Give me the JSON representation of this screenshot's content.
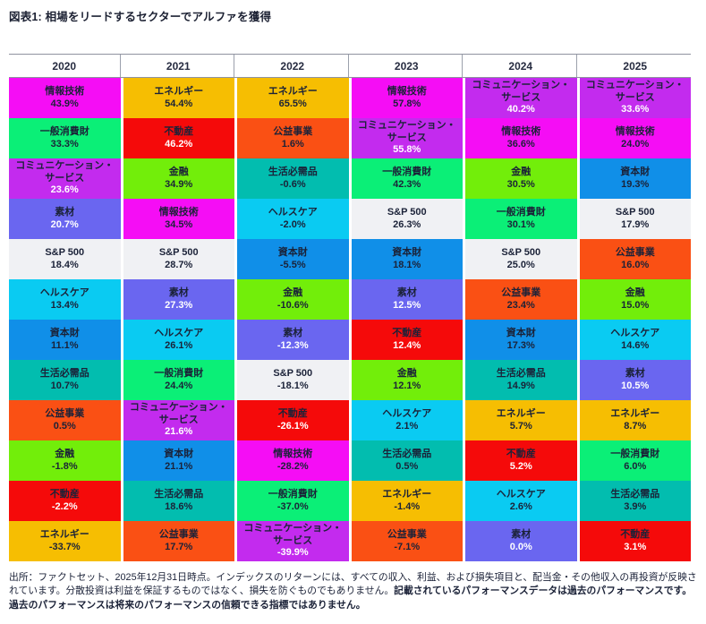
{
  "title": "図表1: 相場をリードするセクターでアルファを獲得",
  "chart_data": {
    "type": "table",
    "subtype": "periodic-table-of-sector-returns",
    "title": "図表1: 相場をリードするセクターでアルファを獲得",
    "years": [
      "2020",
      "2021",
      "2022",
      "2023",
      "2024",
      "2025"
    ],
    "unit": "%",
    "sector_colors": {
      "情報技術": "#f50df5",
      "コミュニケーション・サービス": "#c32bee",
      "一般消費財": "#0bef77",
      "素材": "#6a66f0",
      "S&P 500": "#f0f1f4",
      "ヘルスケア": "#0acbf2",
      "資本財": "#108fe8",
      "生活必需品": "#02bdaf",
      "公益事業": "#fa5014",
      "金融": "#72ee0a",
      "不動産": "#f50a0a",
      "エネルギー": "#f6be02"
    },
    "white_pct_sectors": [
      "コミュニケーション・サービス",
      "素材",
      "不動産"
    ],
    "columns": [
      {
        "year": "2020",
        "cells": [
          [
            "情報技術",
            43.9
          ],
          [
            "一般消費財",
            33.3
          ],
          [
            "コミュニケーション・サービス",
            23.6
          ],
          [
            "素材",
            20.7
          ],
          [
            "S&P 500",
            18.4
          ],
          [
            "ヘルスケア",
            13.4
          ],
          [
            "資本財",
            11.1
          ],
          [
            "生活必需品",
            10.7
          ],
          [
            "公益事業",
            0.5
          ],
          [
            "金融",
            -1.8
          ],
          [
            "不動産",
            -2.2
          ],
          [
            "エネルギー",
            -33.7
          ]
        ]
      },
      {
        "year": "2021",
        "cells": [
          [
            "エネルギー",
            54.4
          ],
          [
            "不動産",
            46.2
          ],
          [
            "金融",
            34.9
          ],
          [
            "情報技術",
            34.5
          ],
          [
            "S&P 500",
            28.7
          ],
          [
            "素材",
            27.3
          ],
          [
            "ヘルスケア",
            26.1
          ],
          [
            "一般消費財",
            24.4
          ],
          [
            "コミュニケーション・サービス",
            21.6
          ],
          [
            "資本財",
            21.1
          ],
          [
            "生活必需品",
            18.6
          ],
          [
            "公益事業",
            17.7
          ]
        ]
      },
      {
        "year": "2022",
        "cells": [
          [
            "エネルギー",
            65.5
          ],
          [
            "公益事業",
            1.6
          ],
          [
            "生活必需品",
            -0.6
          ],
          [
            "ヘルスケア",
            -2.0
          ],
          [
            "資本財",
            -5.5
          ],
          [
            "金融",
            -10.6
          ],
          [
            "素材",
            -12.3
          ],
          [
            "S&P 500",
            -18.1
          ],
          [
            "不動産",
            -26.1
          ],
          [
            "情報技術",
            -28.2
          ],
          [
            "一般消費財",
            -37.0
          ],
          [
            "コミュニケーション・サービス",
            -39.9
          ]
        ]
      },
      {
        "year": "2023",
        "cells": [
          [
            "情報技術",
            57.8
          ],
          [
            "コミュニケーション・サービス",
            55.8
          ],
          [
            "一般消費財",
            42.3
          ],
          [
            "S&P 500",
            26.3
          ],
          [
            "資本財",
            18.1
          ],
          [
            "素材",
            12.5
          ],
          [
            "不動産",
            12.4
          ],
          [
            "金融",
            12.1
          ],
          [
            "ヘルスケア",
            2.1
          ],
          [
            "生活必需品",
            0.5
          ],
          [
            "エネルギー",
            -1.4
          ],
          [
            "公益事業",
            -7.1
          ]
        ]
      },
      {
        "year": "2024",
        "cells": [
          [
            "コミュニケーション・サービス",
            40.2
          ],
          [
            "情報技術",
            36.6
          ],
          [
            "金融",
            30.5
          ],
          [
            "一般消費財",
            30.1
          ],
          [
            "S&P 500",
            25.0
          ],
          [
            "公益事業",
            23.4
          ],
          [
            "資本財",
            17.3
          ],
          [
            "生活必需品",
            14.9
          ],
          [
            "エネルギー",
            5.7
          ],
          [
            "不動産",
            5.2
          ],
          [
            "ヘルスケア",
            2.6
          ],
          [
            "素材",
            0.0
          ]
        ]
      },
      {
        "year": "2025",
        "cells": [
          [
            "コミュニケーション・サービス",
            33.6
          ],
          [
            "情報技術",
            24.0
          ],
          [
            "資本財",
            19.3
          ],
          [
            "S&P 500",
            17.9
          ],
          [
            "公益事業",
            16.0
          ],
          [
            "金融",
            15.0
          ],
          [
            "ヘルスケア",
            14.6
          ],
          [
            "素材",
            10.5
          ],
          [
            "エネルギー",
            8.7
          ],
          [
            "一般消費財",
            6.0
          ],
          [
            "生活必需品",
            3.9
          ],
          [
            "不動産",
            3.1
          ]
        ]
      }
    ]
  },
  "footnote": {
    "normal": "出所：ファクトセット、2025年12月31日時点。インデックスのリターンには、すべての収入、利益、および損失項目と、配当金・その他収入の再投資が反映されています。分散投資は利益を保証するものではなく、損失を防ぐものでもありません。",
    "bold": "記載されているパフォーマンスデータは過去のパフォーマンスです。過去のパフォーマンスは将来のパフォーマンスの信頼できる指標ではありません。"
  }
}
